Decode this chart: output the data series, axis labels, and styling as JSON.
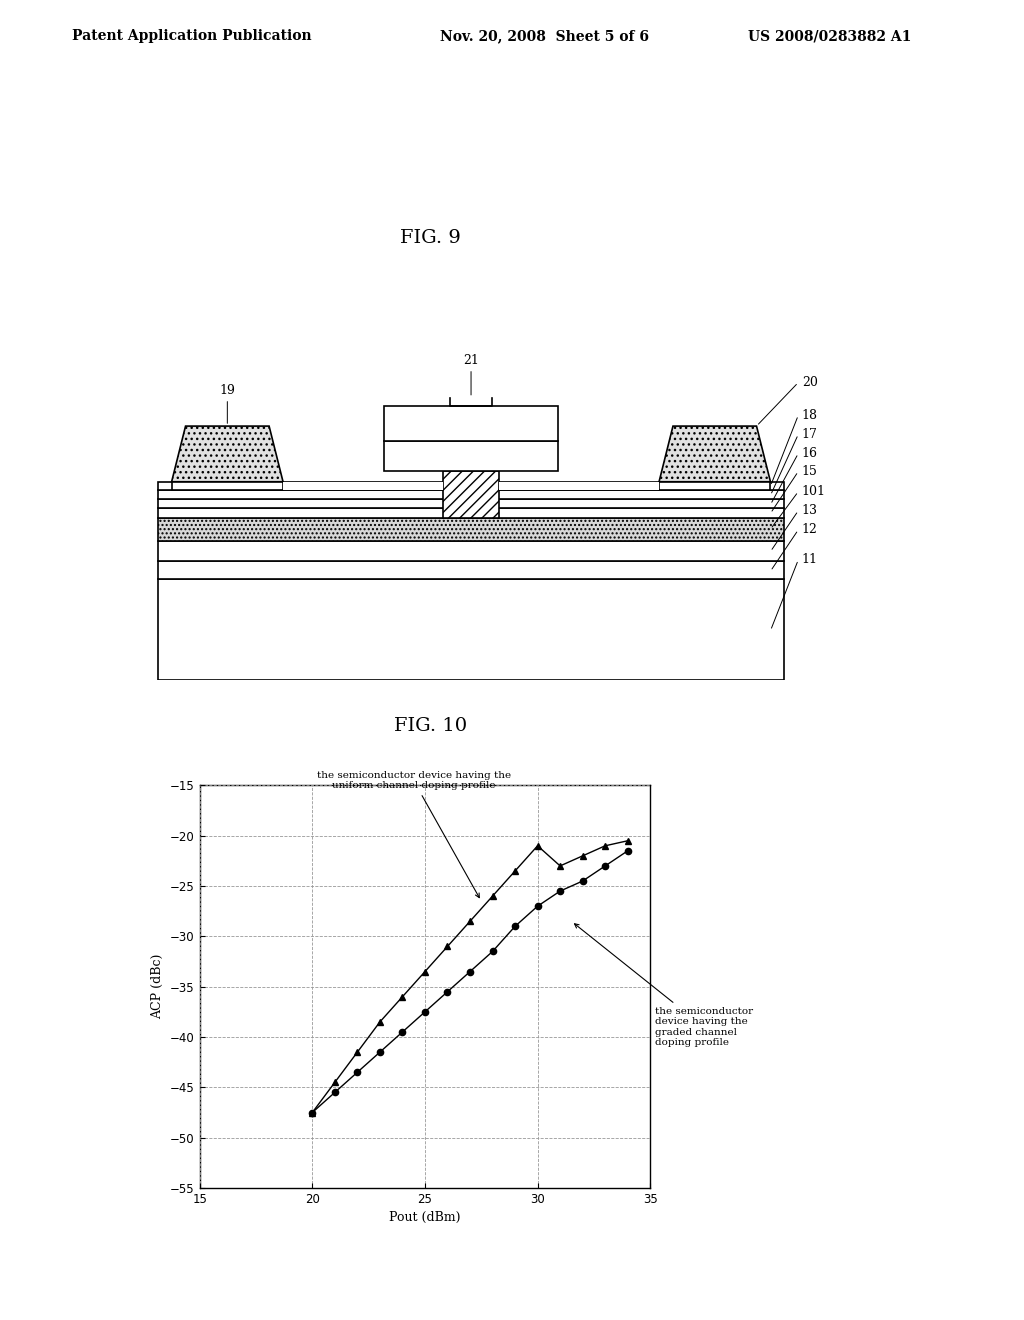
{
  "header_left": "Patent Application Publication",
  "header_mid": "Nov. 20, 2008  Sheet 5 of 6",
  "header_right": "US 2008/0283882 A1",
  "fig9_title": "FIG. 9",
  "fig10_title": "FIG. 10",
  "fig10_xlabel": "Pout (dBm)",
  "fig10_ylabel": "ACP (dBc)",
  "fig10_xlim": [
    15,
    35
  ],
  "fig10_ylim": [
    -55,
    -15
  ],
  "fig10_xticks": [
    15,
    20,
    25,
    30,
    35
  ],
  "fig10_yticks": [
    -55,
    -50,
    -45,
    -40,
    -35,
    -30,
    -25,
    -20,
    -15
  ],
  "series_uniform_x": [
    20.0,
    21.0,
    22.0,
    23.0,
    24.0,
    25.0,
    26.0,
    27.0,
    28.0,
    29.0,
    30.0,
    31.0,
    32.0,
    33.0,
    34.0
  ],
  "series_uniform_y": [
    -47.5,
    -44.5,
    -41.5,
    -38.5,
    -36.0,
    -33.5,
    -31.0,
    -28.5,
    -26.0,
    -23.5,
    -21.0,
    -23.0,
    -22.0,
    -21.0,
    -20.5
  ],
  "series_graded_x": [
    20.0,
    21.0,
    22.0,
    23.0,
    24.0,
    25.0,
    26.0,
    27.0,
    28.0,
    29.0,
    30.0,
    31.0,
    32.0,
    33.0,
    34.0
  ],
  "series_graded_y": [
    -47.5,
    -45.5,
    -43.5,
    -41.5,
    -39.5,
    -37.5,
    -35.5,
    -33.5,
    -31.5,
    -29.0,
    -27.0,
    -25.5,
    -24.5,
    -23.0,
    -21.5
  ],
  "annotation_uniform": "the semiconductor device having the\nuniform channel doping profile",
  "annotation_graded": "the semiconductor\ndevice having the\ngraded channel\ndoping profile",
  "bg_color": "#ffffff",
  "line_color": "#000000",
  "grid_color": "#aaaaaa"
}
